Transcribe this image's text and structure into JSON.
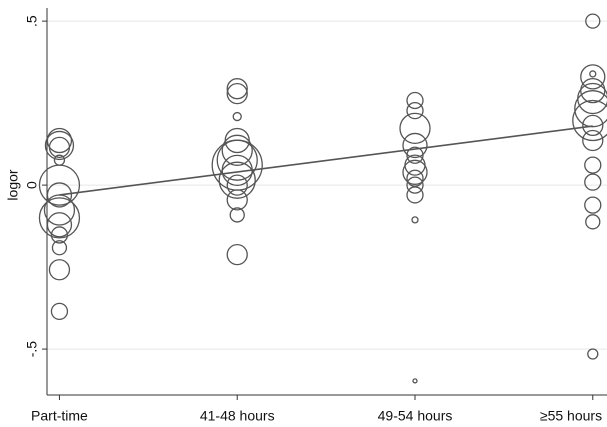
{
  "chart_data": {
    "type": "scatter",
    "y_label": "logor",
    "grid": true,
    "color": "#555555",
    "xlim": [
      0.93,
      4.08
    ],
    "xticks": [
      {
        "value": 1,
        "label": "Part-time"
      },
      {
        "value": 2,
        "label": "41-48 hours"
      },
      {
        "value": 3,
        "label": "49-54 hours"
      },
      {
        "value": 4,
        "label": "≥55 hours"
      }
    ],
    "ylim": [
      -0.64,
      0.54
    ],
    "yticks": [
      {
        "value": -0.5,
        "label": "-.5"
      },
      0,
      {
        "value": 0.5,
        "label": ".5"
      }
    ],
    "series": [
      {
        "x": [
          1,
          1,
          1,
          1,
          1,
          1,
          1,
          1,
          1,
          1,
          1,
          1,
          1,
          2,
          2,
          2,
          2,
          2,
          2,
          2,
          2,
          2,
          2,
          2,
          2,
          2,
          3,
          3,
          3,
          3,
          3,
          3,
          3,
          3,
          3,
          3,
          3,
          3,
          4,
          4,
          4,
          4,
          4,
          4,
          4,
          4,
          4,
          4,
          4,
          4,
          4,
          4
        ],
        "values": [
          0.121,
          0.136,
          0.115,
          0.076,
          0,
          -0.03,
          -0.076,
          -0.1,
          -0.121,
          -0.152,
          -0.191,
          -0.258,
          -0.385,
          0.294,
          0.279,
          0.209,
          0.136,
          0.106,
          0.076,
          0.061,
          0.045,
          0.015,
          0,
          -0.045,
          -0.091,
          -0.212,
          0.258,
          0.227,
          0.173,
          0.121,
          0.091,
          0.061,
          0.039,
          0.021,
          0,
          -0.03,
          -0.106,
          -0.597,
          0.5,
          0.339,
          0.33,
          0.288,
          0.264,
          0.233,
          0.197,
          0.182,
          0.136,
          0.061,
          0.009,
          -0.061,
          -0.112,
          -0.515
        ],
        "sizes": [
          14,
          12,
          10,
          5,
          20,
          12,
          15,
          20,
          12,
          8,
          7,
          10,
          8,
          10,
          10,
          4,
          12,
          15,
          20,
          25,
          15,
          18,
          10,
          10,
          7,
          10,
          8,
          8,
          15,
          12,
          8,
          10,
          12,
          8,
          8,
          8,
          3,
          2,
          7,
          3,
          12,
          12,
          15,
          18,
          20,
          10,
          10,
          8,
          8,
          8,
          7,
          5
        ]
      }
    ],
    "fit_line": {
      "x": [
        1,
        4
      ],
      "values": [
        -0.03,
        0.18
      ]
    }
  }
}
